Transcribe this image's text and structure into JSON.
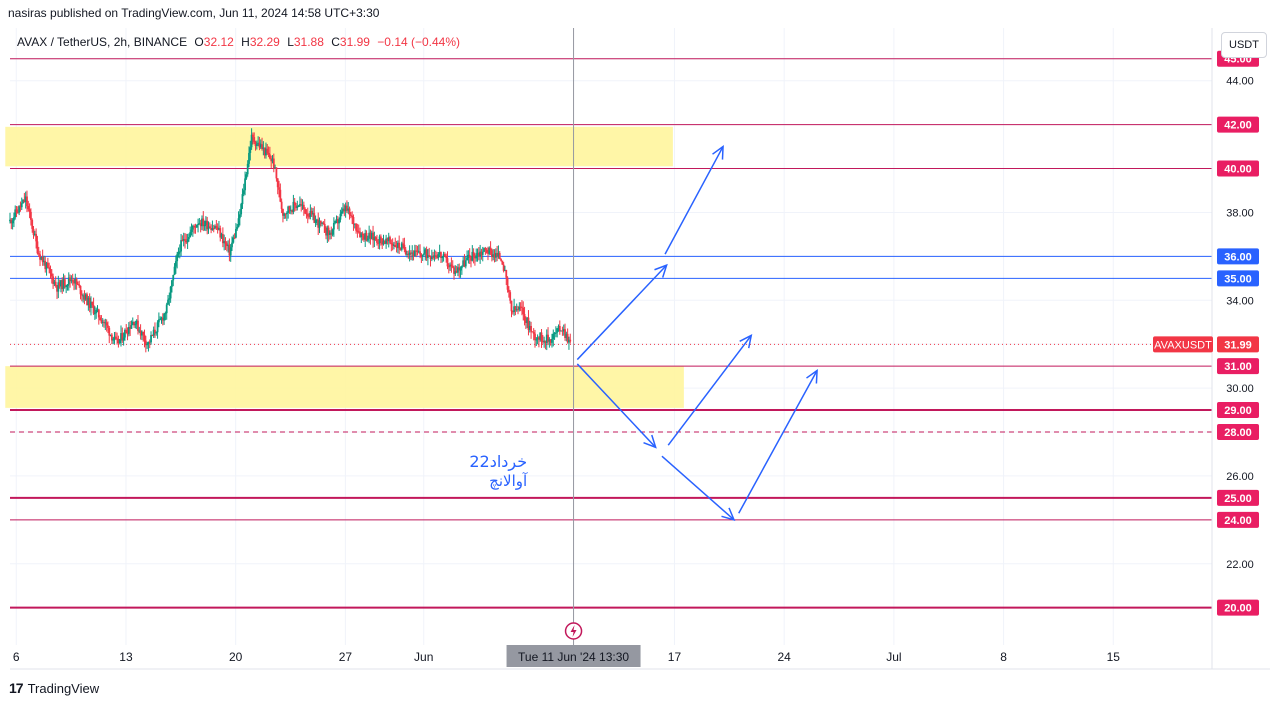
{
  "header": {
    "publish_line": "nasiras published on TradingView.com, Jun 11, 2024 14:58 UTC+3:30",
    "symbol": "AVAX / TetherUS, 2h, BINANCE",
    "ohlc": [
      {
        "label": "O",
        "value": "32.12"
      },
      {
        "label": "H",
        "value": "32.29"
      },
      {
        "label": "L",
        "value": "31.88"
      },
      {
        "label": "C",
        "value": "31.99"
      }
    ],
    "change": "−0.14 (−0.44%)"
  },
  "currency_button": "USDT",
  "footer": {
    "brand": "TradingView"
  },
  "colors": {
    "up": "#089981",
    "down": "#f23645",
    "level_magenta": "#c2185b",
    "level_blue": "#2962ff",
    "zone_fill": "#fff59d",
    "arrow": "#2962ff"
  },
  "chart_data": {
    "type": "candlestick",
    "symbol_label": "AVAXUSDT",
    "last_price": 31.99,
    "ylim": [
      18.3,
      46.4
    ],
    "y_ticks": [
      20,
      22,
      24,
      26,
      28,
      30,
      32,
      34,
      36,
      38,
      40,
      42,
      44,
      45
    ],
    "y_tick_labels": [
      "20.00",
      "22.00",
      "24.00",
      "26.00",
      "28.00",
      "30.00",
      "32.00",
      "34.00",
      "36.00",
      "38.00",
      "40.00",
      "42.00",
      "44.00",
      "45.00"
    ],
    "x_ticks": [
      {
        "label": "6",
        "day": 6
      },
      {
        "label": "13",
        "day": 13
      },
      {
        "label": "20",
        "day": 20
      },
      {
        "label": "27",
        "day": 27
      },
      {
        "label": "Jun",
        "day": 32
      },
      {
        "label": "17",
        "day": 48
      },
      {
        "label": "24",
        "day": 55
      },
      {
        "label": "Jul",
        "day": 62
      },
      {
        "label": "8",
        "day": 69
      },
      {
        "label": "15",
        "day": 76
      }
    ],
    "crosshair": {
      "day": 41.56,
      "label": "Tue 11 Jun '24   13:30"
    },
    "price_path": [
      [
        5.6,
        37.6
      ],
      [
        6.6,
        38.6
      ],
      [
        7.4,
        36.2
      ],
      [
        8.6,
        34.6
      ],
      [
        9.6,
        35.0
      ],
      [
        10.6,
        33.9
      ],
      [
        11.6,
        33.0
      ],
      [
        12.4,
        32.0
      ],
      [
        13.5,
        33.1
      ],
      [
        14.4,
        32.0
      ],
      [
        15.6,
        33.6
      ],
      [
        16.4,
        36.4
      ],
      [
        17.6,
        37.6
      ],
      [
        18.8,
        37.3
      ],
      [
        19.6,
        36.2
      ],
      [
        20.2,
        37.6
      ],
      [
        21.0,
        41.4
      ],
      [
        21.6,
        41.0
      ],
      [
        22.4,
        40.3
      ],
      [
        23.0,
        38.0
      ],
      [
        24.0,
        38.4
      ],
      [
        25.0,
        37.7
      ],
      [
        26.0,
        37.0
      ],
      [
        27.0,
        38.2
      ],
      [
        28.0,
        37.0
      ],
      [
        29.0,
        36.8
      ],
      [
        30.0,
        36.6
      ],
      [
        31.5,
        36.1
      ],
      [
        33.0,
        36.1
      ],
      [
        34.0,
        35.3
      ],
      [
        35.0,
        36.0
      ],
      [
        36.0,
        36.3
      ],
      [
        37.0,
        35.9
      ],
      [
        37.6,
        33.5
      ],
      [
        38.2,
        33.6
      ],
      [
        39.0,
        32.4
      ],
      [
        40.0,
        32.2
      ],
      [
        40.8,
        32.8
      ],
      [
        41.4,
        31.99
      ]
    ],
    "zones": [
      {
        "from_day": 5.3,
        "to_day": 47.9,
        "low": 40.1,
        "high": 41.9
      },
      {
        "from_day": 5.3,
        "to_day": 48.6,
        "low": 29.1,
        "high": 31.0
      }
    ],
    "levels": [
      {
        "price": 45.0,
        "label": "45.00",
        "color": "#c2185b",
        "style": "solid",
        "width": 1
      },
      {
        "price": 42.0,
        "label": "42.00",
        "color": "#c2185b",
        "style": "solid",
        "width": 1
      },
      {
        "price": 40.0,
        "label": "40.00",
        "color": "#c2185b",
        "style": "solid",
        "width": 1
      },
      {
        "price": 36.0,
        "label": "36.00",
        "color": "#2962ff",
        "style": "solid",
        "width": 1
      },
      {
        "price": 35.0,
        "label": "35.00",
        "color": "#2962ff",
        "style": "solid",
        "width": 1
      },
      {
        "price": 31.0,
        "label": "31.00",
        "color": "#c2185b",
        "style": "solid",
        "width": 1
      },
      {
        "price": 29.0,
        "label": "29.00",
        "color": "#c2185b",
        "style": "solid",
        "width": 2
      },
      {
        "price": 28.0,
        "label": "28.00",
        "color": "#c2185b",
        "style": "dashed",
        "width": 1
      },
      {
        "price": 25.0,
        "label": "25.00",
        "color": "#c2185b",
        "style": "solid",
        "width": 2
      },
      {
        "price": 24.0,
        "label": "24.00",
        "color": "#c2185b",
        "style": "solid",
        "width": 1
      },
      {
        "price": 20.0,
        "label": "20.00",
        "color": "#c2185b",
        "style": "solid",
        "width": 2
      }
    ],
    "arrows": [
      {
        "from": [
          41.8,
          31.3
        ],
        "to": [
          47.5,
          35.6
        ]
      },
      {
        "from": [
          47.4,
          36.1
        ],
        "to": [
          51.1,
          41.0
        ]
      },
      {
        "from": [
          41.8,
          31.1
        ],
        "to": [
          46.8,
          27.3
        ]
      },
      {
        "from": [
          47.6,
          27.4
        ],
        "to": [
          52.9,
          32.4
        ]
      },
      {
        "from": [
          47.2,
          26.9
        ],
        "to": [
          51.8,
          24.0
        ]
      },
      {
        "from": [
          52.1,
          24.3
        ],
        "to": [
          57.1,
          30.8
        ]
      }
    ],
    "annotation": {
      "day": 38.6,
      "price": 26.4,
      "lines": [
        "خرداد22",
        "آوالانچ"
      ]
    }
  }
}
